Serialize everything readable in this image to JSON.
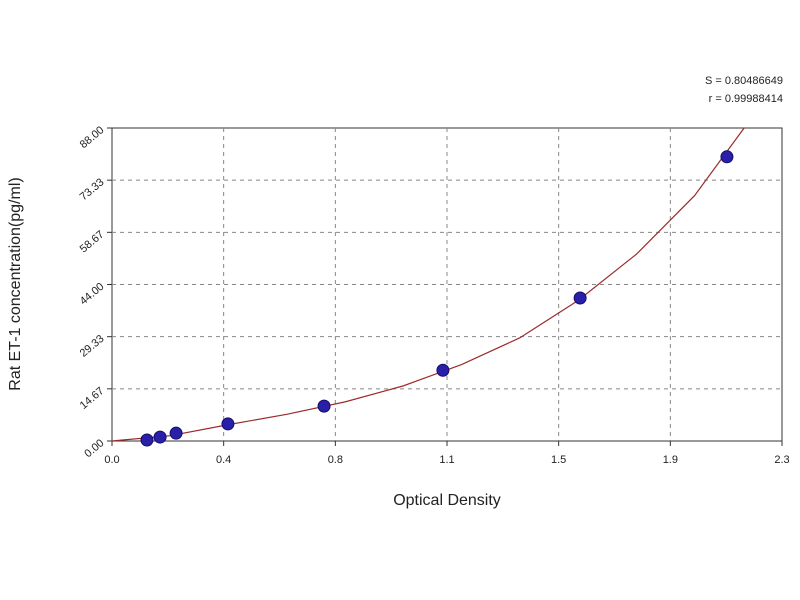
{
  "chart_data": {
    "type": "scatter",
    "annotations": [
      "S = 0.80486649",
      "r = 0.99988414"
    ],
    "x_label": "Optical Density",
    "y_label": "Rat ET-1 concentration(pg/ml)",
    "xlim": [
      0,
      2.3
    ],
    "ylim": [
      0,
      88
    ],
    "xticks": [
      {
        "value": 0,
        "label": "0.0"
      },
      {
        "value": 0.3833,
        "label": "0.4"
      },
      {
        "value": 0.7667,
        "label": "0.8"
      },
      {
        "value": 1.15,
        "label": "1.1"
      },
      {
        "value": 1.5333,
        "label": "1.5"
      },
      {
        "value": 1.9167,
        "label": "1.9"
      },
      2.3
    ],
    "yticks": [
      {
        "value": 0,
        "label": "0.00"
      },
      {
        "value": 14.6667,
        "label": "14.67"
      },
      {
        "value": 29.3333,
        "label": "29.33"
      },
      {
        "value": 44,
        "label": "44.00"
      },
      {
        "value": 58.6667,
        "label": "58.67"
      },
      {
        "value": 73.3333,
        "label": "73.33"
      },
      {
        "value": 88,
        "label": "88.00"
      }
    ],
    "grid": true,
    "points": {
      "color": "#2a1fa8",
      "x": [
        0.12,
        0.165,
        0.22,
        0.398,
        0.728,
        1.136,
        1.607,
        2.111
      ],
      "y": [
        0.28,
        1.1,
        2.2,
        4.8,
        9.8,
        19.9,
        40.2,
        79.9
      ]
    },
    "fit": {
      "color": "#9b2b2b",
      "x": [
        0.0,
        0.2,
        0.4,
        0.6,
        0.8,
        1.0,
        1.2,
        1.4,
        1.6,
        1.8,
        2.0,
        2.17
      ],
      "y": [
        0,
        1.5,
        4.6,
        7.5,
        11,
        15.5,
        21.5,
        29,
        39.5,
        52.5,
        69,
        88
      ]
    }
  }
}
